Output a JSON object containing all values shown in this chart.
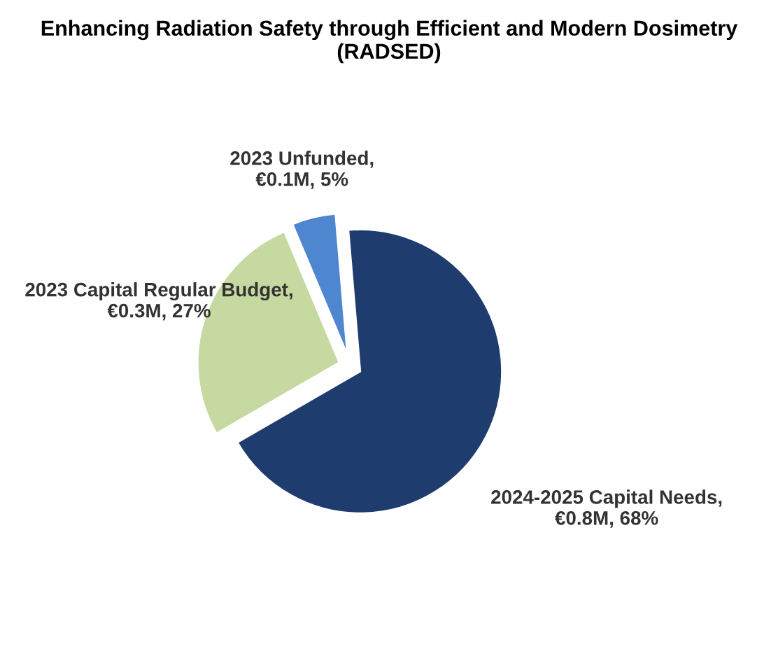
{
  "chart_data": {
    "type": "pie",
    "title": "Enhancing Radiation Safety through Efficient and Modern Dosimetry (RADSED)",
    "categories": [
      "2024-2025 Capital Needs, €0.8M, 68%",
      "2023 Unfunded, €0.1M, 5%",
      "2023 Capital Regular Budget, €0.3M, 27%"
    ],
    "values": [
      68,
      5,
      27
    ],
    "colors": [
      "#1f3c6e",
      "#4f86d0",
      "#c6d9a0"
    ],
    "legend": false
  }
}
